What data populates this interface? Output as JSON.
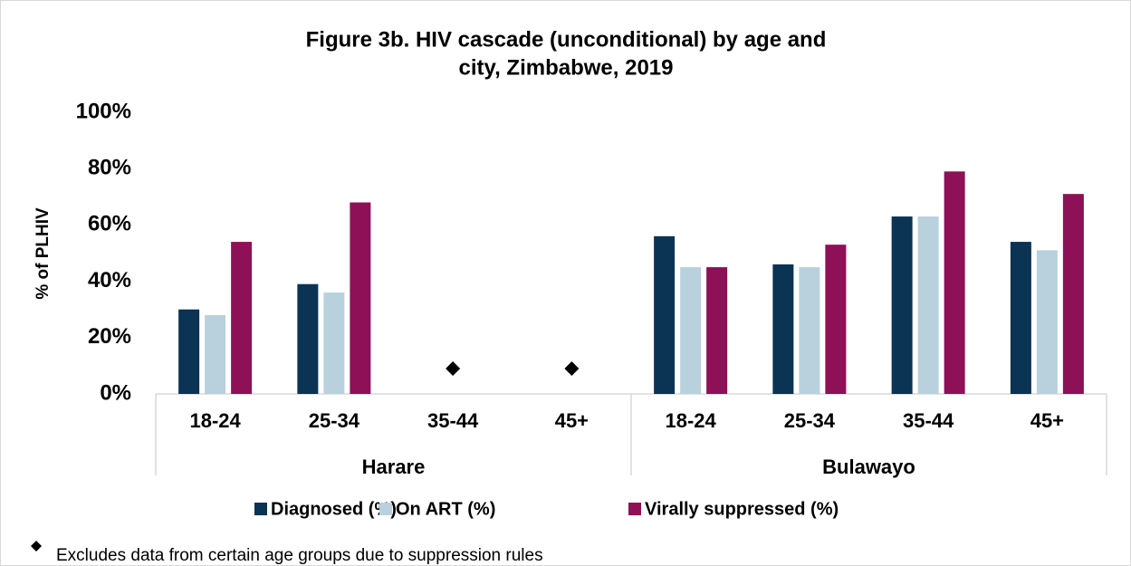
{
  "chart_data": {
    "type": "bar",
    "title": [
      "Figure 3b. HIV cascade (unconditional) by age and",
      "city, Zimbabwe, 2019"
    ],
    "ylabel": "% of PLHIV",
    "groups": [
      {
        "name": "Harare",
        "categories": [
          "18-24",
          "25-34",
          "35-44",
          "45+"
        ]
      },
      {
        "name": "Bulawayo",
        "categories": [
          "18-24",
          "25-34",
          "35-44",
          "45+"
        ]
      }
    ],
    "series": [
      {
        "name": "Diagnosed (%)",
        "color": "#0b3353",
        "values": [
          30,
          39,
          null,
          null,
          56,
          46,
          63,
          54
        ]
      },
      {
        "name": "On ART (%)",
        "color": "#b8d1dd",
        "values": [
          28,
          36,
          null,
          null,
          45,
          45,
          63,
          51
        ]
      },
      {
        "name": "Virally suppressed (%)",
        "color": "#8e1057",
        "values": [
          54,
          68,
          null,
          null,
          45,
          53,
          79,
          71
        ]
      }
    ],
    "ylim": [
      0,
      100
    ],
    "yticks": [
      {
        "value": 0,
        "label": "0%"
      },
      {
        "value": 20,
        "label": "20%"
      },
      {
        "value": 40,
        "label": "40%"
      },
      {
        "value": 60,
        "label": "60%"
      },
      {
        "value": 80,
        "label": "80%"
      },
      {
        "value": 100,
        "label": "100%"
      }
    ],
    "grid": false,
    "legend": "bottom",
    "note": "Excludes data from certain age groups due to suppression rules"
  }
}
